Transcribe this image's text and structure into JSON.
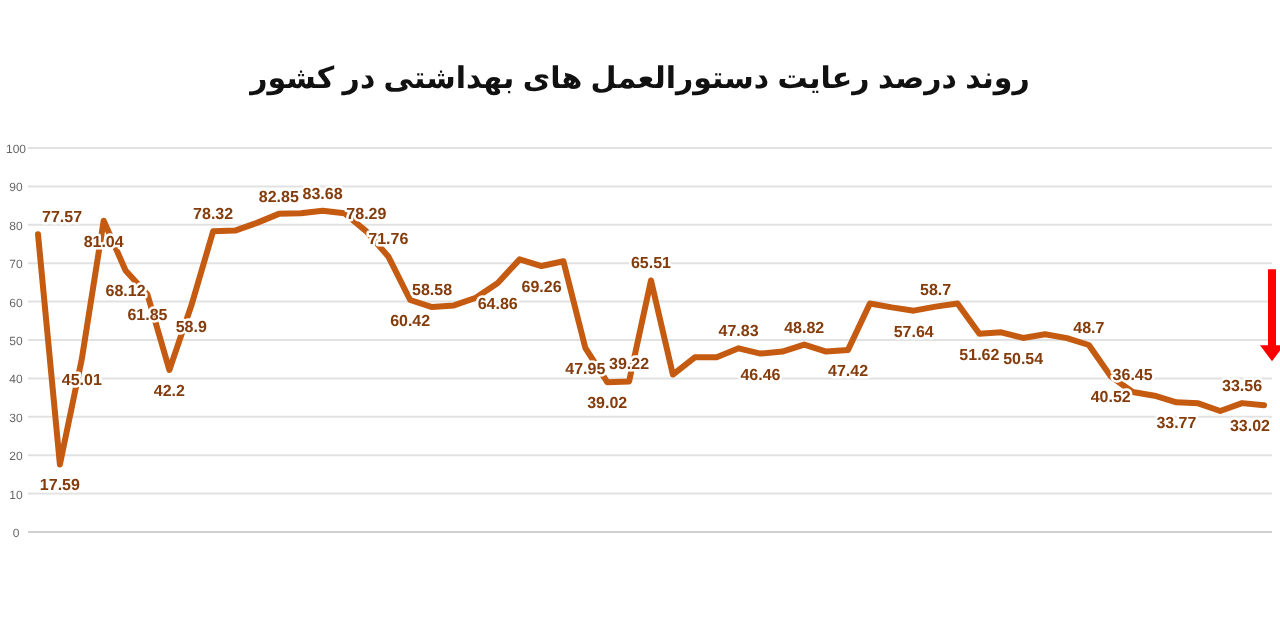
{
  "chart_data": {
    "type": "line",
    "title": "روند درصد رعایت دستورالعمل های بهداشتی در کشور",
    "categories": [
      null,
      null,
      null,
      null,
      null,
      null,
      null,
      null,
      null,
      null,
      null,
      null,
      null,
      null,
      null,
      null,
      null,
      null,
      null,
      null,
      null,
      null,
      null,
      null,
      null,
      null,
      null,
      null,
      null,
      null,
      null,
      null,
      null,
      null,
      null,
      null,
      null,
      null,
      null,
      null,
      null,
      null,
      null,
      null,
      null,
      null,
      null,
      null,
      null,
      null,
      null,
      null,
      null,
      null,
      null,
      null,
      null
    ],
    "series": [
      {
        "color": "#c55a11",
        "values": [
          77.57,
          17.59,
          45.01,
          81.04,
          68.12,
          61.85,
          42.2,
          58.9,
          78.32,
          78.5,
          80.5,
          82.85,
          83,
          83.68,
          83,
          78.29,
          71.76,
          60.42,
          58.58,
          59,
          61,
          64.86,
          71,
          69.26,
          70.5,
          47.95,
          39.02,
          39.22,
          65.51,
          41,
          45.5,
          45.5,
          47.83,
          46.46,
          47,
          48.82,
          47,
          47.42,
          59.5,
          58.5,
          57.64,
          58.7,
          59.5,
          51.62,
          52,
          50.54,
          51.5,
          50.5,
          48.7,
          40.52,
          36.45,
          35.5,
          33.77,
          33.5,
          31.5,
          33.56,
          33.02
        ],
        "value_labels": [
          "77.57",
          "17.59",
          "45.01",
          "81.04",
          "68.12",
          "61.85",
          "42.2",
          "58.9",
          "78.32",
          null,
          null,
          "82.85",
          null,
          "83.68",
          null,
          "78.29",
          "71.76",
          "60.42",
          "58.58",
          null,
          null,
          "64.86",
          null,
          "69.26",
          null,
          "47.95",
          "39.02",
          "39.22",
          "65.51",
          null,
          null,
          null,
          "47.83",
          "46.46",
          null,
          "48.82",
          null,
          "47.42",
          null,
          null,
          "57.64",
          "58.7",
          null,
          "51.62",
          null,
          "50.54",
          null,
          null,
          "48.7",
          "40.52",
          "36.45",
          null,
          "33.77",
          null,
          null,
          "33.56",
          "33.02"
        ]
      }
    ],
    "ylim": [
      0,
      100
    ],
    "yticks": [
      0,
      10,
      20,
      30,
      40,
      50,
      60,
      70,
      80,
      90,
      100
    ],
    "grid": "y"
  }
}
